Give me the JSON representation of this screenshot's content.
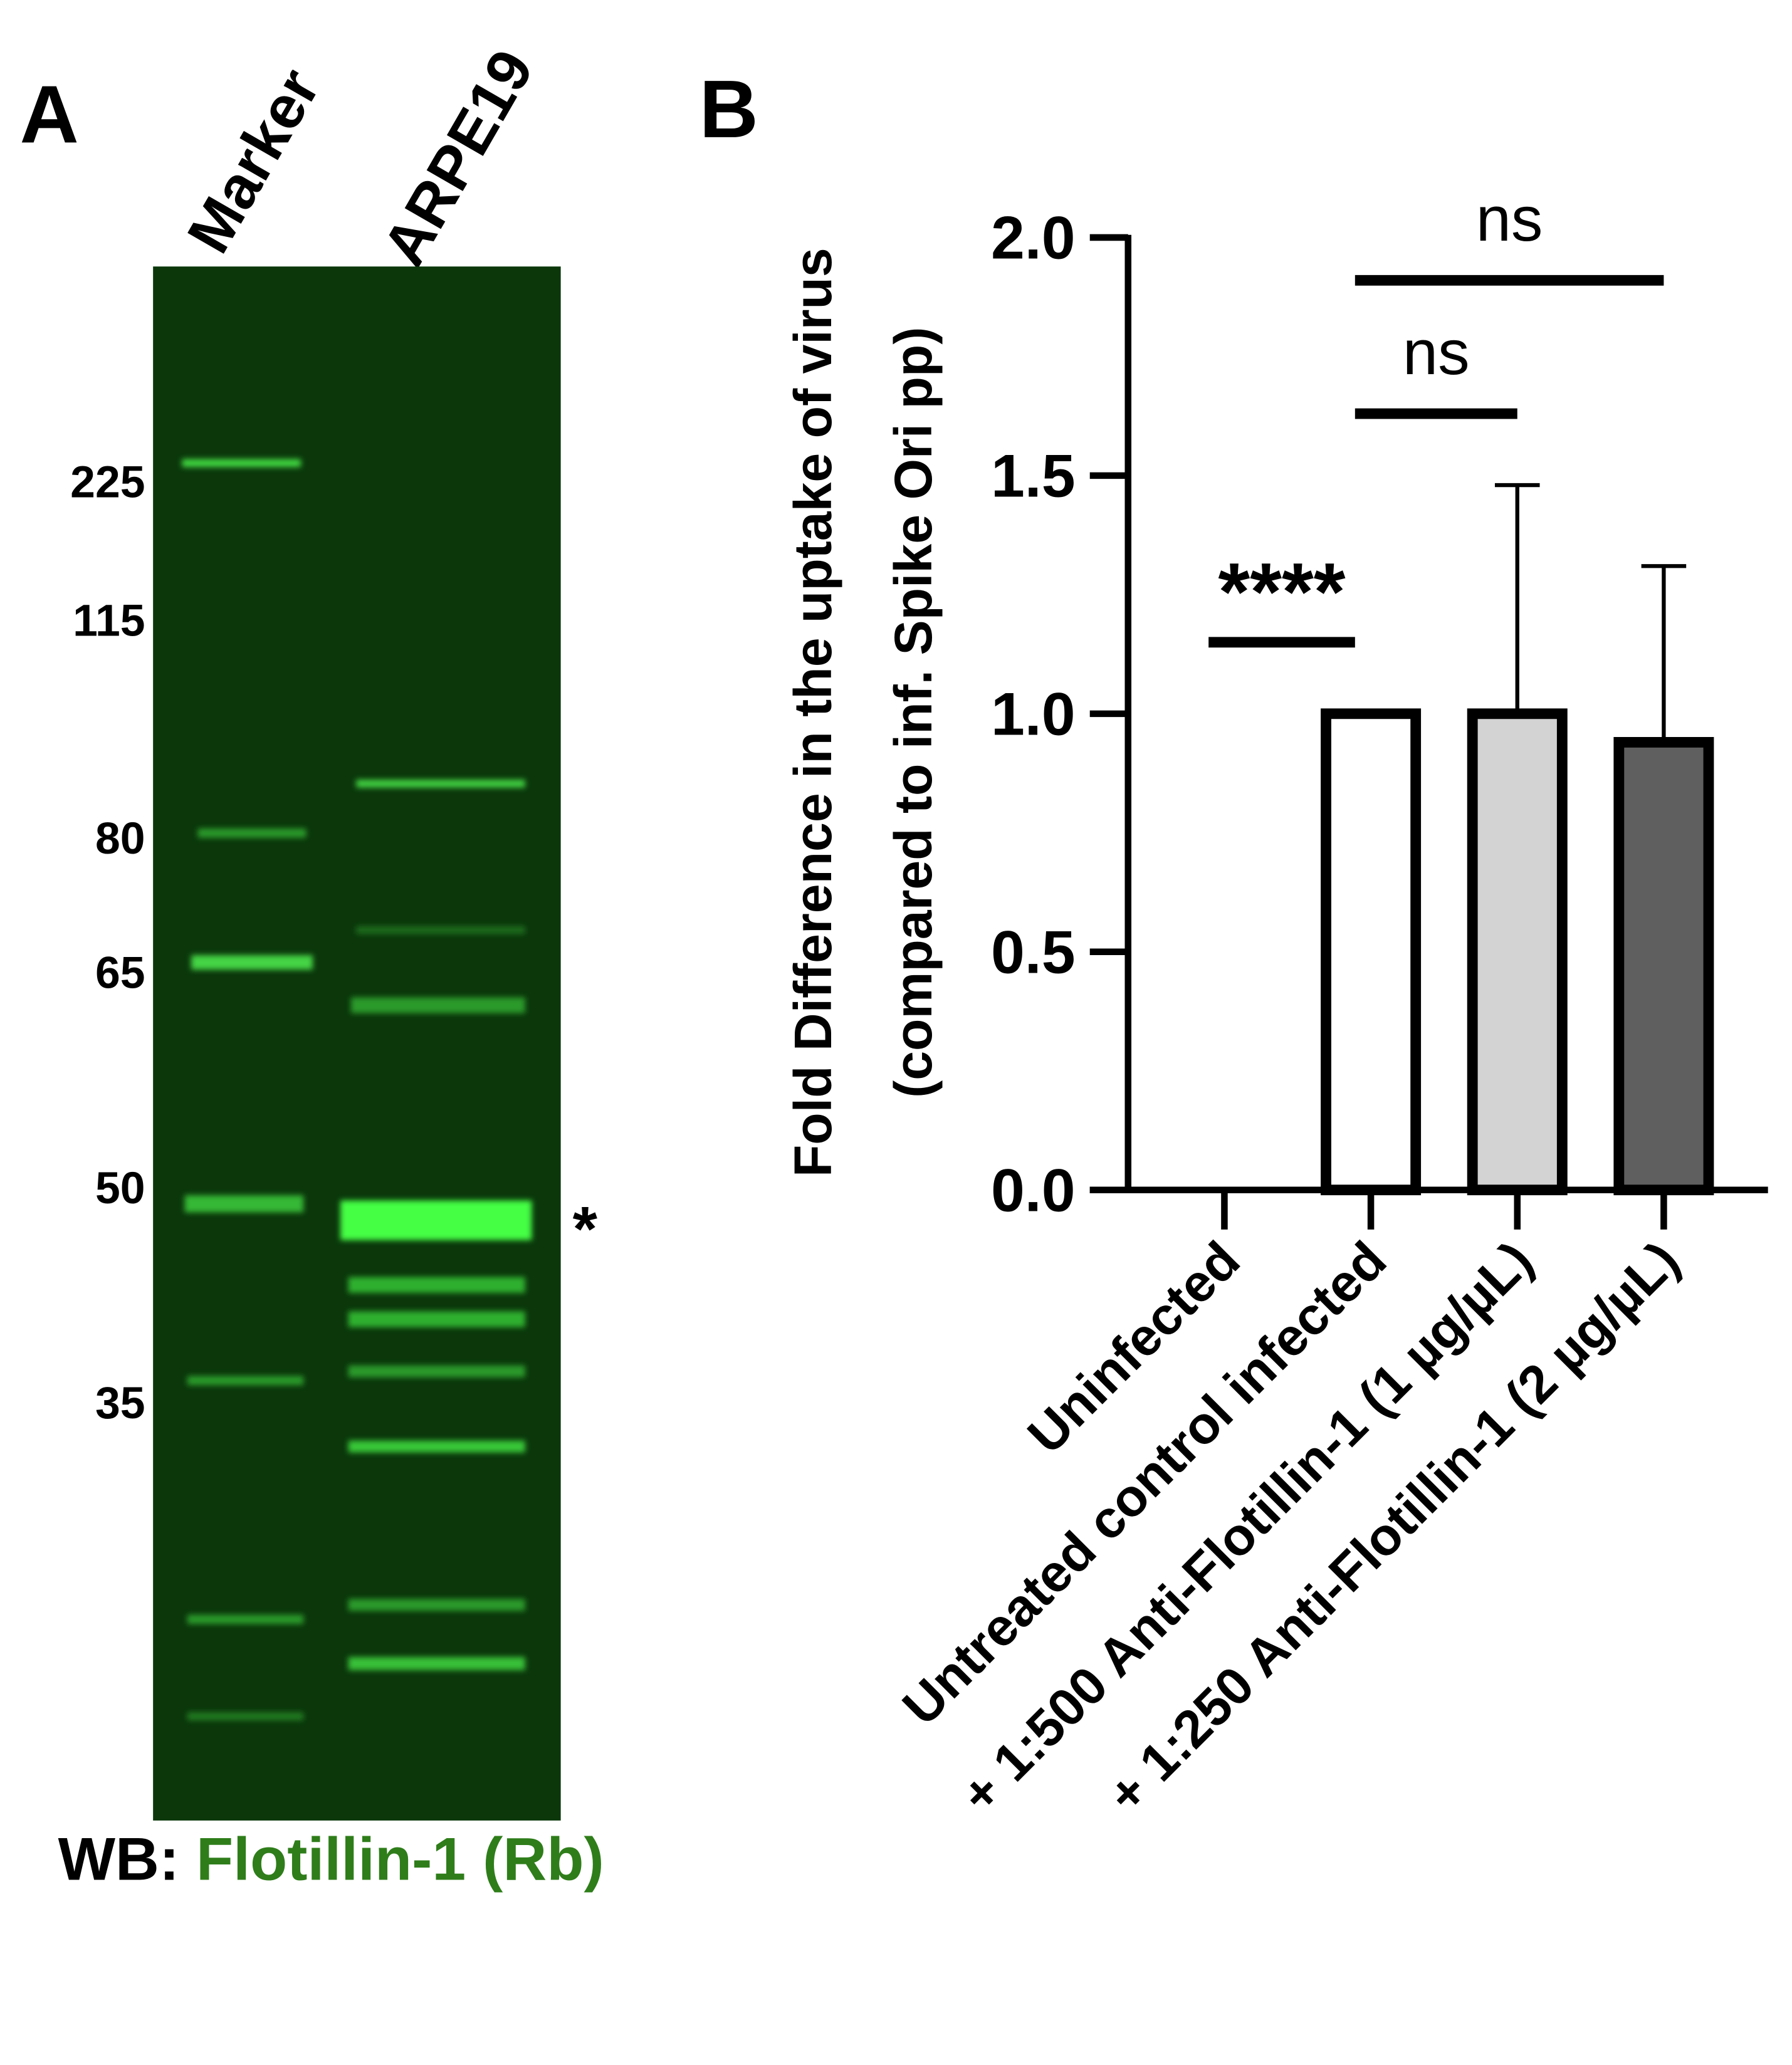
{
  "panel_a": {
    "label": "A",
    "lanes": [
      "Marker",
      "ARPE19"
    ],
    "marker_sizes": [
      225,
      115,
      80,
      65,
      50,
      35
    ],
    "band_marker": "*",
    "caption": {
      "prefix": "WB:",
      "antibody": "Flotillin-1 (Rb)"
    }
  },
  "chart_data": {
    "type": "bar",
    "panel_label": "B",
    "ylabel": [
      "Fold Difference in the uptake of virus",
      "(compared to inf. Spike Ori pp)"
    ],
    "categories": [
      "Uninfected",
      "Untreated control infected",
      "+ 1:500 Anti-Flotillin-1 (1 µg/µL)",
      "+ 1:250 Anti-Flotillin-1 (2 µg/µL)"
    ],
    "values": [
      0,
      1.0,
      1.0,
      0.94
    ],
    "errors": [
      0,
      0,
      0.48,
      0.37
    ],
    "colors": [
      "#ffffff",
      "#ffffff",
      "#d3d3d3",
      "#5f5f5f"
    ],
    "ylim": [
      0,
      2
    ],
    "yticks": [
      {
        "value": 0,
        "label": "0.0"
      },
      {
        "value": 0.5,
        "label": "0.5"
      },
      {
        "value": 1,
        "label": "1.0"
      },
      {
        "value": 1.5,
        "label": "1.5"
      },
      {
        "value": 2,
        "label": "2.0"
      }
    ],
    "significance": [
      {
        "label": "****",
        "between": [
          0,
          1
        ],
        "y": 1.15
      },
      {
        "label": "ns",
        "between": [
          1,
          2
        ],
        "y": 1.63
      },
      {
        "label": "ns",
        "between": [
          1,
          3
        ],
        "y": 1.91
      }
    ]
  }
}
